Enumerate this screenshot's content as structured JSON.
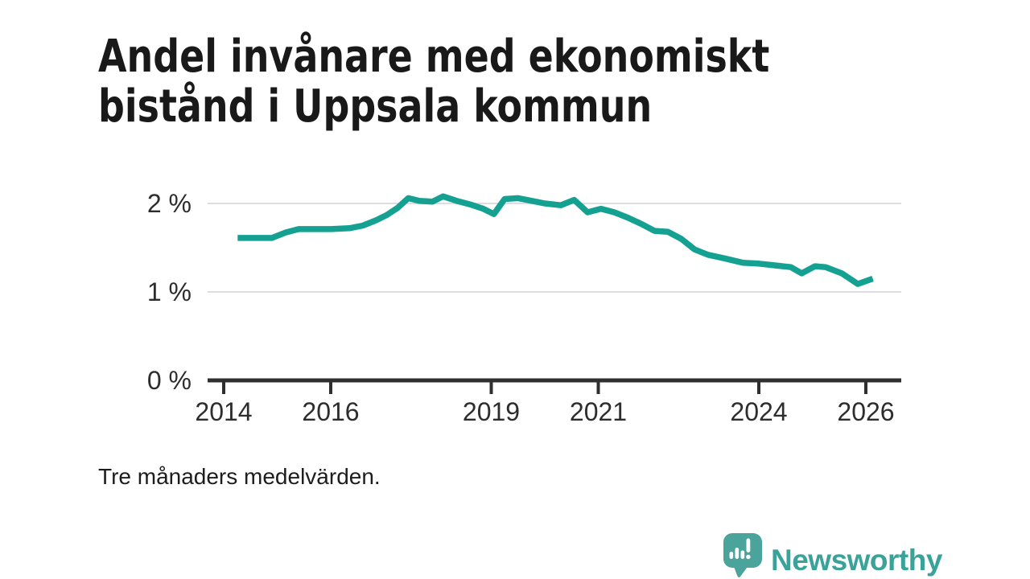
{
  "title": {
    "line1": "Andel invånare med ekonomiskt",
    "line2": "bistånd i Uppsala kommun"
  },
  "footnote": "Tre månaders medelvärden.",
  "branding": {
    "name": "Newsworthy",
    "icon": "newsworthy-speech-bubble-barchart-icon"
  },
  "colors": {
    "line": "#14a192",
    "axis": "#2f2f2f",
    "axis_text": "#2d2d2d",
    "grid": "#dddddd",
    "brand": "#3ba29a",
    "title_text": "#191919"
  },
  "chart_data": {
    "type": "line",
    "title": "Andel invånare med ekonomiskt bistånd i Uppsala kommun",
    "note": "Tre månaders medelvärden.",
    "xlabel": "",
    "ylabel": "",
    "grid": "horizontal",
    "legend": "none",
    "x_range": [
      2013.7,
      2026.66
    ],
    "y_range": [
      0,
      2.35
    ],
    "x_ticks": [
      {
        "label": "2014",
        "year": 2014
      },
      {
        "label": "2016",
        "year": 2016
      },
      {
        "label": "2019",
        "year": 2019
      },
      {
        "label": "2021",
        "year": 2021
      },
      {
        "label": "2024",
        "year": 2024
      },
      {
        "label": "2026",
        "year": 2026
      }
    ],
    "y_ticks": [
      {
        "label": "0 %",
        "value": 0
      },
      {
        "label": "1 %",
        "value": 1
      },
      {
        "label": "2 %",
        "value": 2
      }
    ],
    "series": [
      {
        "name": "Andel invånare med ekonomiskt bistånd",
        "unit": "%",
        "points": [
          [
            2014.26,
            1.61
          ],
          [
            2014.6,
            1.61
          ],
          [
            2014.9,
            1.61
          ],
          [
            2015.15,
            1.67
          ],
          [
            2015.4,
            1.71
          ],
          [
            2015.7,
            1.71
          ],
          [
            2016.0,
            1.71
          ],
          [
            2016.35,
            1.72
          ],
          [
            2016.6,
            1.75
          ],
          [
            2016.85,
            1.81
          ],
          [
            2017.05,
            1.87
          ],
          [
            2017.25,
            1.95
          ],
          [
            2017.45,
            2.06
          ],
          [
            2017.65,
            2.03
          ],
          [
            2017.9,
            2.02
          ],
          [
            2018.1,
            2.08
          ],
          [
            2018.35,
            2.03
          ],
          [
            2018.6,
            1.99
          ],
          [
            2018.85,
            1.94
          ],
          [
            2019.05,
            1.88
          ],
          [
            2019.25,
            2.05
          ],
          [
            2019.5,
            2.06
          ],
          [
            2019.75,
            2.03
          ],
          [
            2020.0,
            2.0
          ],
          [
            2020.3,
            1.98
          ],
          [
            2020.55,
            2.04
          ],
          [
            2020.8,
            1.9
          ],
          [
            2021.05,
            1.94
          ],
          [
            2021.3,
            1.9
          ],
          [
            2021.55,
            1.84
          ],
          [
            2021.8,
            1.77
          ],
          [
            2022.05,
            1.69
          ],
          [
            2022.3,
            1.68
          ],
          [
            2022.55,
            1.6
          ],
          [
            2022.8,
            1.48
          ],
          [
            2023.05,
            1.42
          ],
          [
            2023.35,
            1.38
          ],
          [
            2023.7,
            1.33
          ],
          [
            2024.0,
            1.32
          ],
          [
            2024.3,
            1.3
          ],
          [
            2024.6,
            1.28
          ],
          [
            2024.8,
            1.21
          ],
          [
            2025.05,
            1.29
          ],
          [
            2025.25,
            1.28
          ],
          [
            2025.55,
            1.21
          ],
          [
            2025.85,
            1.09
          ],
          [
            2026.13,
            1.15
          ]
        ]
      }
    ]
  }
}
